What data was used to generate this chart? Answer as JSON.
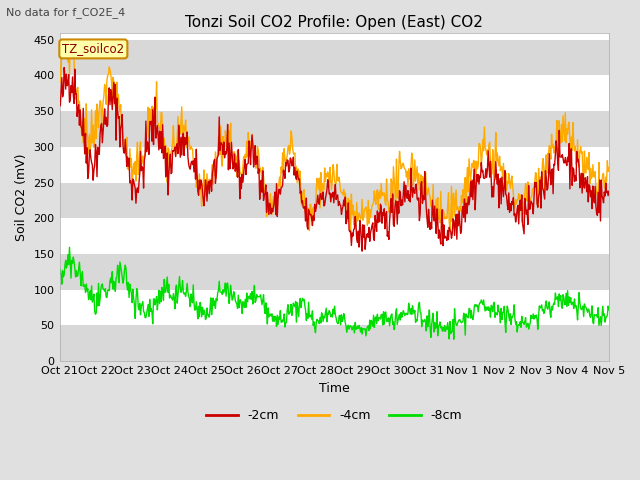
{
  "title": "Tonzi Soil CO2 Profile: Open (East) CO2",
  "ylabel": "Soil CO2 (mV)",
  "xlabel": "Time",
  "no_data_text": "No data for f_CO2E_4",
  "legend_box_text": "TZ_soilco2",
  "ylim": [
    0,
    460
  ],
  "yticks": [
    0,
    50,
    100,
    150,
    200,
    250,
    300,
    350,
    400,
    450
  ],
  "x_tick_labels": [
    "Oct 21",
    "Oct 22",
    "Oct 23",
    "Oct 24",
    "Oct 25",
    "Oct 26",
    "Oct 27",
    "Oct 28",
    "Oct 29",
    "Oct 30",
    "Oct 31",
    "Nov 1",
    "Nov 2",
    "Nov 3",
    "Nov 4",
    "Nov 5"
  ],
  "line_colors": {
    "-2cm": "#cc0000",
    "-4cm": "#ffaa00",
    "-8cm": "#00dd00"
  },
  "background_color": "#e0e0e0",
  "plot_bg_color": "#ffffff",
  "stripe_color": "#d8d8d8",
  "title_fontsize": 11,
  "axis_label_fontsize": 9,
  "tick_fontsize": 8
}
